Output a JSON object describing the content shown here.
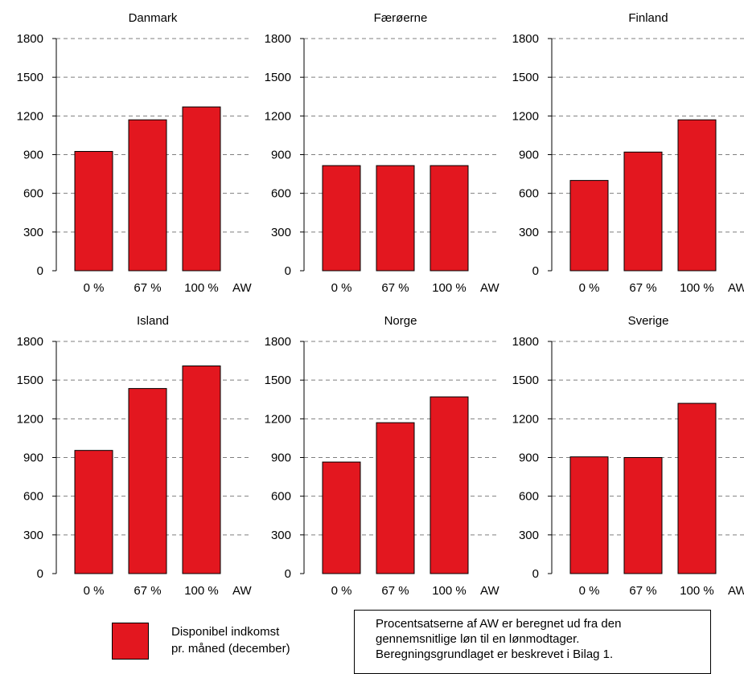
{
  "chart_data": [
    {
      "type": "bar",
      "title": "Danmark",
      "categories": [
        "0 %",
        "67 %",
        "100 %"
      ],
      "unit_label": "AW",
      "values": [
        925,
        1170,
        1270
      ],
      "ylim": [
        0,
        1800
      ],
      "yticks": [
        0,
        300,
        600,
        900,
        1200,
        1500,
        1800
      ]
    },
    {
      "type": "bar",
      "title": "Færøerne",
      "categories": [
        "0 %",
        "67 %",
        "100 %"
      ],
      "unit_label": "AW",
      "values": [
        815,
        815,
        815
      ],
      "ylim": [
        0,
        1800
      ],
      "yticks": [
        0,
        300,
        600,
        900,
        1200,
        1500,
        1800
      ]
    },
    {
      "type": "bar",
      "title": "Finland",
      "categories": [
        "0 %",
        "67 %",
        "100 %"
      ],
      "unit_label": "AW",
      "values": [
        700,
        920,
        1170
      ],
      "ylim": [
        0,
        1800
      ],
      "yticks": [
        0,
        300,
        600,
        900,
        1200,
        1500,
        1800
      ]
    },
    {
      "type": "bar",
      "title": "Island",
      "categories": [
        "0 %",
        "67 %",
        "100 %"
      ],
      "unit_label": "AW",
      "values": [
        955,
        1435,
        1610
      ],
      "ylim": [
        0,
        1800
      ],
      "yticks": [
        0,
        300,
        600,
        900,
        1200,
        1500,
        1800
      ]
    },
    {
      "type": "bar",
      "title": "Norge",
      "categories": [
        "0 %",
        "67 %",
        "100 %"
      ],
      "unit_label": "AW",
      "values": [
        865,
        1170,
        1370
      ],
      "ylim": [
        0,
        1800
      ],
      "yticks": [
        0,
        300,
        600,
        900,
        1200,
        1500,
        1800
      ]
    },
    {
      "type": "bar",
      "title": "Sverige",
      "categories": [
        "0 %",
        "67 %",
        "100 %"
      ],
      "unit_label": "AW",
      "values": [
        905,
        900,
        1320
      ],
      "ylim": [
        0,
        1800
      ],
      "yticks": [
        0,
        300,
        600,
        900,
        1200,
        1500,
        1800
      ]
    }
  ],
  "legend": {
    "line1": "Disponibel indkomst",
    "line2": "pr. måned (december)"
  },
  "note": {
    "line1": "Procentsatserne af AW er beregnet ud fra den",
    "line2": "gennemsnitlige løn til en lønmodtager.",
    "line3": "Beregningsgrundlaget er beskrevet i Bilag 1."
  },
  "colors": {
    "bar": "#e3171f",
    "grid": "#7f7f7f"
  }
}
